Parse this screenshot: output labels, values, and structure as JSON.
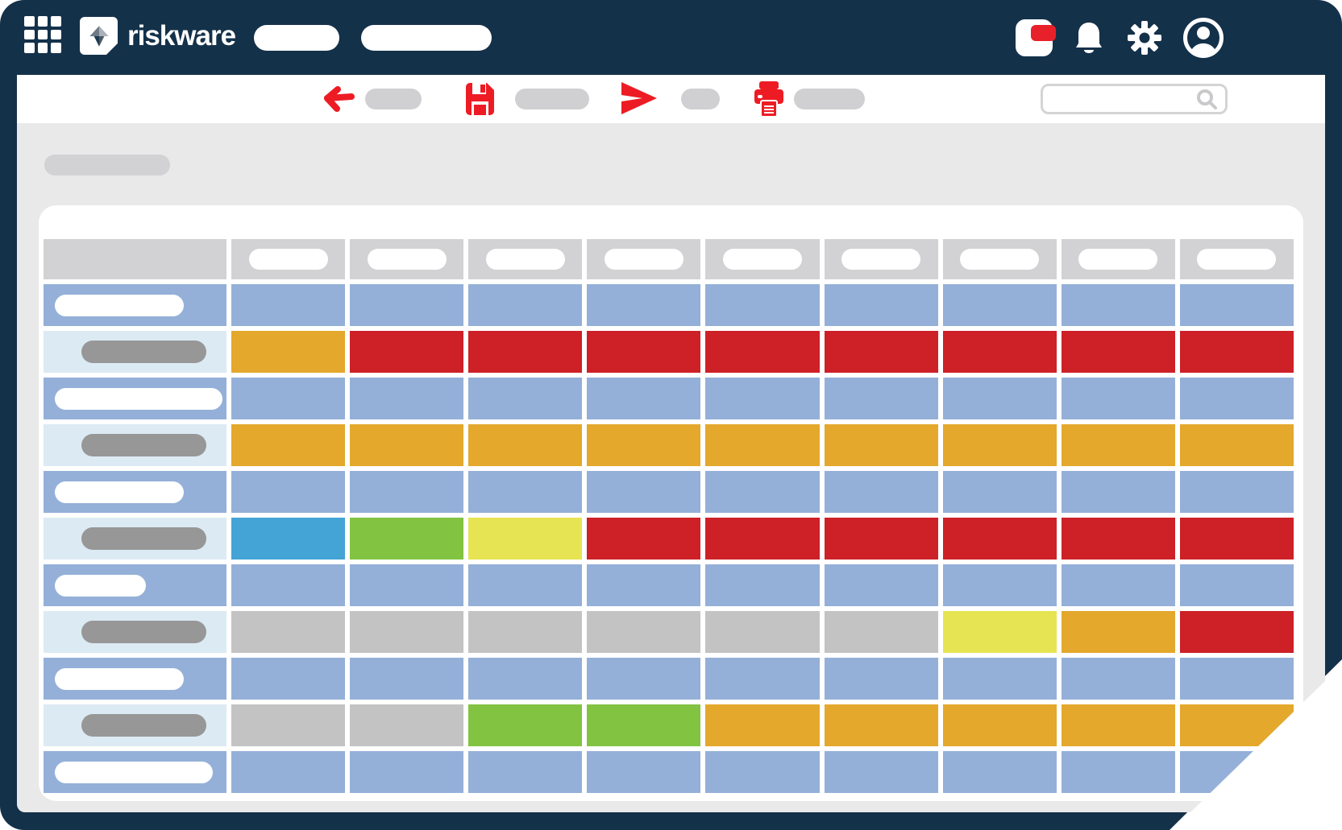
{
  "brand": {
    "name": "riskware"
  },
  "topbar": {
    "icons": [
      "grid-menu-icon",
      "logo-mark",
      "nav-placeholder-1",
      "nav-placeholder-2",
      "card-notification-icon",
      "bell-icon",
      "gear-icon",
      "avatar-icon"
    ]
  },
  "toolbar": {
    "actions": [
      {
        "icon": "back-arrow-icon",
        "label_placeholder_width": 70
      },
      {
        "icon": "save-icon",
        "label_placeholder_width": 92
      },
      {
        "icon": "send-icon",
        "label_placeholder_width": 48
      },
      {
        "icon": "print-icon",
        "label_placeholder_width": 88
      }
    ],
    "search": {
      "icon": "search-icon",
      "value": "",
      "placeholder": ""
    }
  },
  "content": {
    "title_placeholder": true,
    "heatmap": {
      "data_columns": 9,
      "palette": {
        "blue": "#94b0d8",
        "lightblue": "#dceaf3",
        "amber": "#e3a82c",
        "red": "#ce2027",
        "cyan": "#44a4d5",
        "green": "#82c342",
        "yellow": "#e6e452",
        "gray": "#c3c3c3",
        "header": "#d2d2d4"
      },
      "rows": [
        {
          "kind": "category",
          "pill_width": 160,
          "cells": [
            "blue",
            "blue",
            "blue",
            "blue",
            "blue",
            "blue",
            "blue",
            "blue",
            "blue"
          ]
        },
        {
          "kind": "data",
          "cells": [
            "amber",
            "red",
            "red",
            "red",
            "red",
            "red",
            "red",
            "red",
            "red"
          ]
        },
        {
          "kind": "category",
          "pill_width": 208,
          "cells": [
            "blue",
            "blue",
            "blue",
            "blue",
            "blue",
            "blue",
            "blue",
            "blue",
            "blue"
          ]
        },
        {
          "kind": "data",
          "cells": [
            "amber",
            "amber",
            "amber",
            "amber",
            "amber",
            "amber",
            "amber",
            "amber",
            "amber"
          ]
        },
        {
          "kind": "category",
          "pill_width": 160,
          "cells": [
            "blue",
            "blue",
            "blue",
            "blue",
            "blue",
            "blue",
            "blue",
            "blue",
            "blue"
          ]
        },
        {
          "kind": "data",
          "cells": [
            "cyan",
            "green",
            "yellow",
            "red",
            "red",
            "red",
            "red",
            "red",
            "red"
          ]
        },
        {
          "kind": "category",
          "pill_width": 113,
          "cells": [
            "blue",
            "blue",
            "blue",
            "blue",
            "blue",
            "blue",
            "blue",
            "blue",
            "blue"
          ]
        },
        {
          "kind": "data",
          "cells": [
            "gray",
            "gray",
            "gray",
            "gray",
            "gray",
            "gray",
            "yellow",
            "amber",
            "red"
          ]
        },
        {
          "kind": "category",
          "pill_width": 160,
          "cells": [
            "blue",
            "blue",
            "blue",
            "blue",
            "blue",
            "blue",
            "blue",
            "blue",
            "blue"
          ]
        },
        {
          "kind": "data",
          "cells": [
            "gray",
            "gray",
            "green",
            "green",
            "amber",
            "amber",
            "amber",
            "amber",
            "amber"
          ]
        },
        {
          "kind": "category",
          "pill_width": 196,
          "cells": [
            "blue",
            "blue",
            "blue",
            "blue",
            "blue",
            "blue",
            "blue",
            "blue",
            "blue"
          ]
        }
      ]
    }
  },
  "colors": {
    "frame_navy": "#14314a",
    "toolbar_icon_red": "#ed1c24",
    "content_bg": "#e9e9ea",
    "placeholder_gray": "#d0d0d2"
  }
}
